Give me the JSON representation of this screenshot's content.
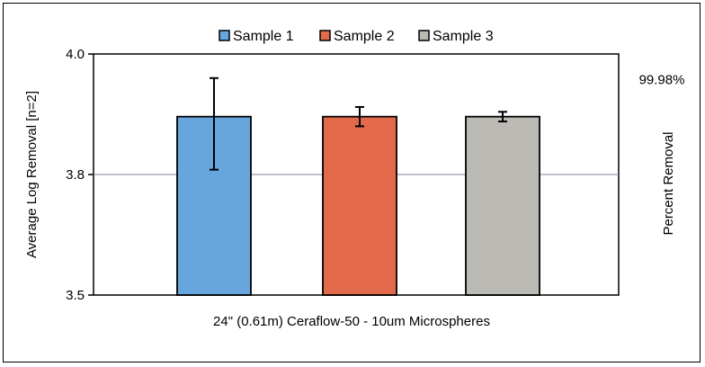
{
  "chart_data": {
    "type": "bar",
    "categories": [
      "24\" (0.61m) Ceraflow-50 - 10um Microspheres"
    ],
    "xlabel": "24\" (0.61m) Ceraflow-50 - 10um Microspheres",
    "ylabel": "Average Log Removal [n=2]",
    "y2label": "Percent Removal",
    "ylim": [
      3.5,
      4.0
    ],
    "yticks": [
      "3.5",
      "3.8",
      "4.0"
    ],
    "ytick_values": [
      3.5,
      3.75,
      4.0
    ],
    "y2ticks": [
      {
        "label": "99.98%",
        "value": 3.9
      }
    ],
    "grid": "horizontal at 3.8 only",
    "legend": "top-center",
    "series": [
      {
        "name": "Sample 1",
        "values": [
          3.87
        ],
        "error_low": 3.76,
        "error_high": 3.95,
        "color": "#66a6dc"
      },
      {
        "name": "Sample 2",
        "values": [
          3.87
        ],
        "error_low": 3.85,
        "error_high": 3.89,
        "color": "#e26a4b"
      },
      {
        "name": "Sample 3",
        "values": [
          3.87
        ],
        "error_low": 3.86,
        "error_high": 3.88,
        "color": "#bcbab5"
      }
    ]
  }
}
